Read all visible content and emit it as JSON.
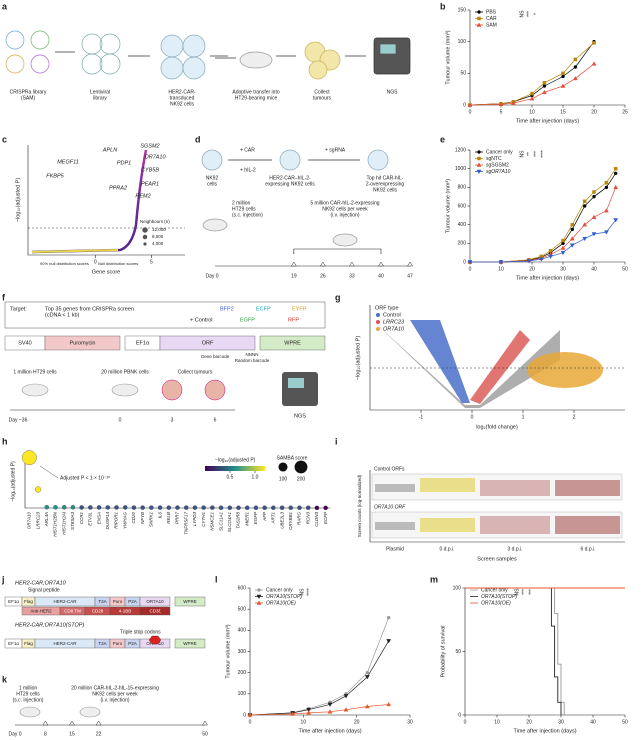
{
  "panel_labels": [
    "a",
    "b",
    "c",
    "d",
    "e",
    "f",
    "g",
    "h",
    "i",
    "j",
    "k",
    "l",
    "m"
  ],
  "panels": {
    "a": {
      "steps": [
        [
          "CRISPRa library",
          "(SAM)"
        ],
        [
          "Lentiviral",
          "library"
        ],
        [
          "HER2-CAR-",
          "transduced",
          "NK92 cells"
        ],
        [
          "Adoptive transfer into",
          "HT29-bearing mice"
        ],
        [
          "Collect",
          "tumours"
        ],
        [
          "NGS"
        ]
      ]
    },
    "c": {
      "y_label": "−log₁₀(adjusted P)",
      "x_label": "Gene score",
      "xlim": [
        -6,
        8
      ],
      "xticks": [
        0,
        5
      ],
      "genes": [
        "APLN",
        "SGSM2",
        "PDP1",
        "OR7A10",
        "MEGF11",
        "CYB5B",
        "FKBP5",
        "PEAR1",
        "PPRA2",
        "REM2"
      ],
      "legend_title": "Neighbours (n)",
      "legend_values": [
        {
          "value": 12000,
          "label": "12,000"
        },
        {
          "value": 8000,
          "label": "8,000"
        },
        {
          "value": 4000,
          "label": "4,000"
        }
      ],
      "notes": [
        "90% null distribution scores",
        "Null distribution scores"
      ]
    },
    "d": {
      "cells": [
        [
          "NK92",
          "cells"
        ],
        [
          "HER2-CAR–hIL-2-",
          "expressing NK92 cells"
        ],
        [
          "Top hit CAR-hIL-",
          "2-overexpressing",
          "NK92 cells"
        ]
      ],
      "steps": [
        "+ CAR",
        "+ hIL-2",
        "+ sgRNA"
      ],
      "injections": [
        [
          "2 million",
          "HT29 cells",
          "(s.c. injection)"
        ],
        [
          "5 million CAR-hIL-2-expressing",
          "NK92 cells per week",
          "(i.v. injection)"
        ]
      ],
      "day0": "Day 0",
      "days": [
        19,
        26,
        33,
        40,
        47
      ]
    },
    "f": {
      "target": "Target:",
      "genes": [
        "Top 35 genes from CRISPRa screen",
        "(cDNA < 1 kb)"
      ],
      "control": "+ Control",
      "fluors": [
        {
          "name": "BFP2",
          "color": "#3b5bdb"
        },
        {
          "name": "ECFP",
          "color": "#1aa3b8"
        },
        {
          "name": "EYFP",
          "color": "#d4a017"
        },
        {
          "name": "EGFP",
          "color": "#2e9e44"
        },
        {
          "name": "RFP",
          "color": "#d62d2d"
        }
      ],
      "construct": [
        "SV40",
        "Puromycin",
        "EF1α",
        "ORF",
        "WPRE"
      ],
      "barcodes": [
        "Gene barcode",
        "NNNN",
        "Random barcode"
      ],
      "timeline": [
        "1 million HT29 cells",
        "20 million PBNK cells",
        "Collect tumours"
      ],
      "days": [
        "Day −36",
        "0",
        "3",
        "6"
      ],
      "ngs": "NGS"
    },
    "g": {
      "legend_title": "ORF type",
      "legend": [
        {
          "name": "Control",
          "color": "#4a6fc9"
        },
        {
          "name": "LRRC23",
          "color": "#d9534f"
        },
        {
          "name": "OR7A10",
          "color": "#e8a838"
        }
      ],
      "x_label": "log₂(fold change)",
      "y_label": "−log₁₀(adjusted P)",
      "xlim": [
        -2,
        3
      ],
      "xticks": [
        -1,
        0,
        1,
        2
      ]
    },
    "i": {
      "groups": [
        "Control ORFs",
        "OR7A10 ORF"
      ],
      "categories": [
        "Plasmid",
        "0 d.p.i.",
        "3 d.p.i.",
        "6 d.p.i."
      ],
      "x_label": "Screen samples",
      "y_label": "Screen counts (log-normalized)"
    },
    "j": {
      "constructs": [
        "HER2-CAR;OR7A10",
        "HER2-CAR;OR7A10(STOP)"
      ],
      "signal": "Signal peptide",
      "stop": "Triple stop codons",
      "elements": [
        "EF1α",
        "Flag",
        "HER2-CAR",
        "T2A",
        "Puro",
        "P2A",
        "OR7A10",
        "WPRE"
      ],
      "domains": [
        "Anti-HER2",
        "CD8 TM",
        "CD28",
        "4-1BB",
        "CD3ζ"
      ]
    },
    "k": {
      "injections": [
        [
          "1 million",
          "HT29 cells",
          "(s.c. injection)"
        ],
        [
          "20 million CAR-hIL-2-hIL-15-expressing",
          "NK92 cells per week",
          "(i.v. injection)"
        ]
      ],
      "day0": "Day 0",
      "days": [
        8,
        15,
        22,
        50
      ]
    }
  },
  "chart_data": [
    {
      "type": "line",
      "x_label": "Time after injection (days)",
      "y_label": "Tumour volume (mm³)",
      "xlim": [
        0,
        25
      ],
      "xticks": [
        0,
        5,
        10,
        15,
        20,
        25
      ],
      "ylim": [
        0,
        150
      ],
      "yticks": [
        0,
        50,
        100,
        150
      ],
      "x": [
        0,
        5,
        7,
        10,
        12,
        15,
        17,
        20
      ],
      "series": [
        {
          "name": "PBS",
          "color": "#000000",
          "marker": "circle",
          "values": [
            0,
            2,
            5,
            15,
            30,
            45,
            60,
            100
          ]
        },
        {
          "name": "CAR",
          "color": "#b8860b",
          "marker": "square",
          "values": [
            0,
            2,
            5,
            18,
            35,
            50,
            72,
            98
          ]
        },
        {
          "name": "SAM",
          "color": "#e0503a",
          "marker": "triangle",
          "values": [
            0,
            1,
            3,
            10,
            20,
            30,
            42,
            65
          ]
        }
      ],
      "annotations": [
        "NS",
        "***",
        "*"
      ]
    },
    {
      "type": "line",
      "x_label": "Time after injection (days)",
      "y_label": "Tumour volume (mm³)",
      "xlim": [
        0,
        50
      ],
      "xticks": [
        0,
        10,
        20,
        30,
        40,
        50
      ],
      "ylim": [
        0,
        1200
      ],
      "yticks": [
        0,
        200,
        400,
        600,
        800,
        1000,
        1200
      ],
      "x": [
        0,
        10,
        19,
        23,
        26,
        30,
        33,
        37,
        40,
        44,
        47
      ],
      "series": [
        {
          "name": "Cancer only",
          "color": "#000000",
          "marker": "circle",
          "values": [
            0,
            0,
            20,
            50,
            100,
            200,
            350,
            600,
            700,
            800,
            950
          ]
        },
        {
          "name": "sgNTC",
          "color": "#b8860b",
          "marker": "square",
          "values": [
            0,
            0,
            25,
            60,
            120,
            230,
            400,
            650,
            750,
            850,
            1000
          ]
        },
        {
          "name": "sgSGSM2",
          "color": "#e0503a",
          "marker": "triangle",
          "values": [
            0,
            0,
            15,
            40,
            80,
            150,
            250,
            400,
            480,
            550,
            800
          ]
        },
        {
          "name": "sgOR7A10",
          "color": "#2f5fd0",
          "marker": "triangle-down",
          "values": [
            0,
            0,
            10,
            30,
            60,
            100,
            180,
            250,
            300,
            320,
            450
          ]
        }
      ],
      "annotations": [
        "NS",
        "**",
        "***",
        "****"
      ]
    },
    {
      "type": "line",
      "x_label": "Time after injection (days)",
      "y_label": "Tumour volume (mm³)",
      "xlim": [
        0,
        30
      ],
      "xticks": [
        0,
        10,
        20,
        30
      ],
      "ylim": [
        0,
        600
      ],
      "yticks": [
        0,
        100,
        200,
        300,
        400,
        500,
        600
      ],
      "x": [
        0,
        8,
        11,
        15,
        18,
        22,
        26
      ],
      "series": [
        {
          "name": "Cancer only",
          "color": "#999999",
          "marker": "circle",
          "values": [
            0,
            10,
            30,
            60,
            100,
            200,
            460
          ]
        },
        {
          "name": "OR7A10(STOP)",
          "color": "#222222",
          "marker": "triangle-down",
          "values": [
            0,
            10,
            25,
            50,
            90,
            180,
            350
          ]
        },
        {
          "name": "OR7A10(OE)",
          "color": "#e8552b",
          "marker": "triangle",
          "values": [
            0,
            5,
            10,
            15,
            25,
            40,
            50
          ]
        }
      ],
      "annotations": [
        "NS",
        "****"
      ]
    },
    {
      "type": "step",
      "x_label": "Time after injection (days)",
      "y_label": "Probability of survival",
      "xlim": [
        0,
        50
      ],
      "xticks": [
        0,
        10,
        20,
        30,
        40,
        50
      ],
      "ylim": [
        0,
        100
      ],
      "yticks": [
        0,
        50,
        100
      ],
      "series": [
        {
          "name": "Cancer only",
          "color": "#999999",
          "x": [
            0,
            27,
            28,
            29,
            30,
            31
          ],
          "values": [
            100,
            100,
            80,
            40,
            10,
            0
          ]
        },
        {
          "name": "OR7A10(STOP)",
          "color": "#222222",
          "x": [
            0,
            26,
            27,
            28,
            29,
            30
          ],
          "values": [
            100,
            100,
            70,
            30,
            10,
            0
          ]
        },
        {
          "name": "OR7A10(OE)",
          "color": "#e8552b",
          "x": [
            0,
            50
          ],
          "values": [
            100,
            100
          ]
        }
      ],
      "annotations": [
        "NS",
        "***",
        "***"
      ]
    },
    {
      "type": "dot",
      "y_label": "−log₁₀(adjusted P)",
      "ylim": [
        0,
        40
      ],
      "categories": [
        "OR7A10",
        "LRRC23",
        "ARL4A",
        "HIST1H2BN",
        "HIST1H2AI",
        "ST8SIA3",
        "CCR1",
        "ETV3L",
        "ENSA",
        "DUSP14",
        "RIPOR1",
        "YWHAG",
        "CD20",
        "NFYB",
        "SNRK1",
        "IL6",
        "RELB",
        "PRR7",
        "TNFRSF17",
        "LYPD3",
        "CYTH1",
        "NSMCE1",
        "SLC11A1",
        "SLCO4A1",
        "TAS2R8",
        "MIER1",
        "EGFP",
        "AFP",
        "ART1",
        "UBE2L3",
        "CRYBB1",
        "RARG",
        "RCN3",
        "CLDN3",
        "ECFP"
      ],
      "values": [
        38,
        14,
        0.6,
        0.5,
        0.5,
        0.5,
        0.4,
        0.4,
        0.4,
        0.4,
        0.4,
        0.4,
        0.3,
        0.3,
        0.3,
        0.3,
        0.3,
        0.3,
        0.3,
        0.3,
        0.3,
        0.3,
        0.2,
        0.2,
        0.2,
        0.2,
        0.2,
        0.2,
        0.2,
        0.2,
        0.2,
        0.2,
        0.2,
        0.1,
        0.1
      ],
      "sizes": [
        250,
        40,
        20,
        20,
        20,
        20,
        20,
        20,
        20,
        20,
        20,
        20,
        20,
        20,
        20,
        20,
        20,
        20,
        20,
        20,
        20,
        20,
        20,
        20,
        20,
        20,
        20,
        20,
        20,
        20,
        20,
        20,
        20,
        20,
        20
      ],
      "annotation": "Adjusted P < 1 × 10⁻²⁰",
      "colorscale": [
        "#440154",
        "#3b528b",
        "#21918c",
        "#5ec962",
        "#fde725"
      ],
      "color_label": "−log₁₀(adjusted P)",
      "color_lim": [
        0,
        1.2
      ],
      "color_ticks": [
        0.5,
        {
          "value": 1,
          "label": "1.0"
        }
      ],
      "size_label": "SAMBA score",
      "size_ticks": [
        100,
        200
      ]
    }
  ]
}
